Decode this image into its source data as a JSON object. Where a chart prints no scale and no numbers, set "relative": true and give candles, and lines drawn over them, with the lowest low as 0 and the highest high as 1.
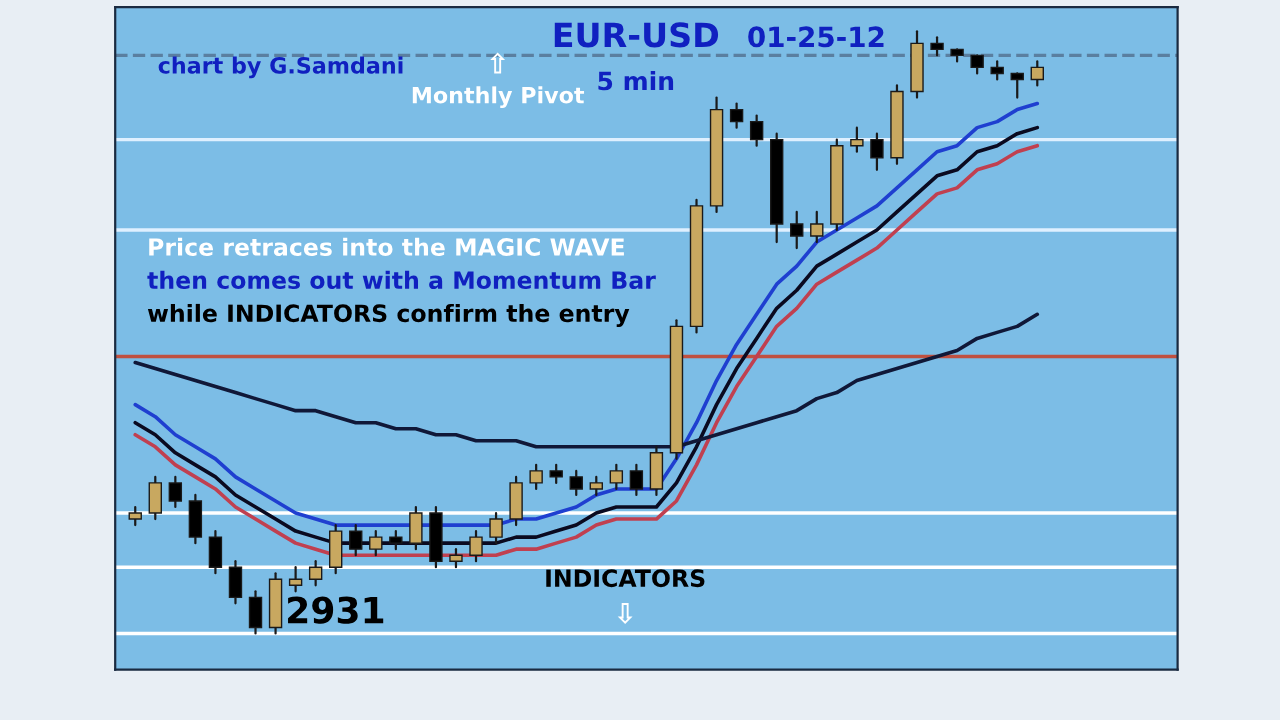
{
  "chart_data": {
    "type": "candlestick",
    "title": "EUR-USD",
    "subtitle": "01-25-12",
    "relative": true,
    "grid": false,
    "categories": [
      null,
      null,
      null,
      null,
      null,
      null,
      null,
      null,
      null,
      null,
      null,
      null,
      null,
      null,
      null,
      null,
      null,
      null,
      null,
      null,
      null,
      null,
      null,
      null,
      null,
      null,
      null,
      null,
      null,
      null,
      null,
      null,
      null,
      null,
      null,
      null,
      null,
      null,
      null,
      null,
      null,
      null,
      null,
      null,
      null,
      null
    ],
    "ohlc": [
      [
        0.19,
        0.21,
        0.18,
        0.2
      ],
      [
        0.2,
        0.26,
        0.19,
        0.25
      ],
      [
        0.25,
        0.26,
        0.21,
        0.22
      ],
      [
        0.22,
        0.23,
        0.15,
        0.16
      ],
      [
        0.16,
        0.17,
        0.1,
        0.11
      ],
      [
        0.11,
        0.12,
        0.05,
        0.06
      ],
      [
        0.06,
        0.07,
        0.0,
        0.01
      ],
      [
        0.01,
        0.1,
        0.0,
        0.09
      ],
      [
        0.08,
        0.11,
        0.07,
        0.09
      ],
      [
        0.09,
        0.12,
        0.08,
        0.11
      ],
      [
        0.11,
        0.18,
        0.1,
        0.17
      ],
      [
        0.17,
        0.18,
        0.13,
        0.14
      ],
      [
        0.14,
        0.17,
        0.13,
        0.16
      ],
      [
        0.16,
        0.17,
        0.14,
        0.15
      ],
      [
        0.15,
        0.21,
        0.14,
        0.2
      ],
      [
        0.2,
        0.21,
        0.11,
        0.12
      ],
      [
        0.12,
        0.14,
        0.11,
        0.13
      ],
      [
        0.13,
        0.17,
        0.12,
        0.16
      ],
      [
        0.16,
        0.2,
        0.15,
        0.19
      ],
      [
        0.19,
        0.26,
        0.18,
        0.25
      ],
      [
        0.25,
        0.28,
        0.24,
        0.27
      ],
      [
        0.27,
        0.28,
        0.25,
        0.26
      ],
      [
        0.26,
        0.27,
        0.23,
        0.24
      ],
      [
        0.24,
        0.26,
        0.23,
        0.25
      ],
      [
        0.25,
        0.28,
        0.24,
        0.27
      ],
      [
        0.27,
        0.28,
        0.23,
        0.24
      ],
      [
        0.24,
        0.31,
        0.23,
        0.3
      ],
      [
        0.3,
        0.52,
        0.29,
        0.51
      ],
      [
        0.51,
        0.72,
        0.5,
        0.71
      ],
      [
        0.71,
        0.89,
        0.7,
        0.87
      ],
      [
        0.87,
        0.88,
        0.84,
        0.85
      ],
      [
        0.85,
        0.86,
        0.81,
        0.82
      ],
      [
        0.82,
        0.83,
        0.65,
        0.68
      ],
      [
        0.68,
        0.7,
        0.64,
        0.66
      ],
      [
        0.66,
        0.7,
        0.65,
        0.68
      ],
      [
        0.68,
        0.82,
        0.67,
        0.81
      ],
      [
        0.81,
        0.84,
        0.8,
        0.82
      ],
      [
        0.82,
        0.83,
        0.77,
        0.79
      ],
      [
        0.79,
        0.91,
        0.78,
        0.9
      ],
      [
        0.9,
        1.0,
        0.89,
        0.98
      ],
      [
        0.98,
        0.99,
        0.96,
        0.97
      ],
      [
        0.97,
        0.97,
        0.95,
        0.96
      ],
      [
        0.96,
        0.96,
        0.93,
        0.94
      ],
      [
        0.94,
        0.95,
        0.92,
        0.93
      ],
      [
        0.93,
        0.93,
        0.89,
        0.92
      ],
      [
        0.92,
        0.95,
        0.91,
        0.94
      ]
    ],
    "series": [
      {
        "type": "line",
        "color": "#1f3fd0",
        "values": [
          0.38,
          0.36,
          0.33,
          0.31,
          0.29,
          0.26,
          0.24,
          0.22,
          0.2,
          0.19,
          0.18,
          0.18,
          0.18,
          0.18,
          0.18,
          0.18,
          0.18,
          0.18,
          0.18,
          0.19,
          0.19,
          0.2,
          0.21,
          0.23,
          0.24,
          0.24,
          0.24,
          0.29,
          0.35,
          0.42,
          0.48,
          0.53,
          0.58,
          0.61,
          0.65,
          0.67,
          0.69,
          0.71,
          0.74,
          0.77,
          0.8,
          0.81,
          0.84,
          0.85,
          0.87,
          0.88
        ]
      },
      {
        "type": "line",
        "color": "#0a0a20",
        "values": [
          0.35,
          0.33,
          0.3,
          0.28,
          0.26,
          0.23,
          0.21,
          0.19,
          0.17,
          0.16,
          0.15,
          0.15,
          0.15,
          0.15,
          0.15,
          0.15,
          0.15,
          0.15,
          0.15,
          0.16,
          0.16,
          0.17,
          0.18,
          0.2,
          0.21,
          0.21,
          0.21,
          0.25,
          0.31,
          0.38,
          0.44,
          0.49,
          0.54,
          0.57,
          0.61,
          0.63,
          0.65,
          0.67,
          0.7,
          0.73,
          0.76,
          0.77,
          0.8,
          0.81,
          0.83,
          0.84
        ]
      },
      {
        "type": "line",
        "color": "#c04050",
        "values": [
          0.33,
          0.31,
          0.28,
          0.26,
          0.24,
          0.21,
          0.19,
          0.17,
          0.15,
          0.14,
          0.13,
          0.13,
          0.13,
          0.13,
          0.13,
          0.13,
          0.13,
          0.13,
          0.13,
          0.14,
          0.14,
          0.15,
          0.16,
          0.18,
          0.19,
          0.19,
          0.19,
          0.22,
          0.28,
          0.35,
          0.41,
          0.46,
          0.51,
          0.54,
          0.58,
          0.6,
          0.62,
          0.64,
          0.67,
          0.7,
          0.73,
          0.74,
          0.77,
          0.78,
          0.8,
          0.81
        ]
      },
      {
        "type": "line",
        "color": "#101838",
        "values": [
          0.45,
          0.44,
          0.43,
          0.42,
          0.41,
          0.4,
          0.39,
          0.38,
          0.37,
          0.37,
          0.36,
          0.35,
          0.35,
          0.34,
          0.34,
          0.33,
          0.33,
          0.32,
          0.32,
          0.32,
          0.31,
          0.31,
          0.31,
          0.31,
          0.31,
          0.31,
          0.31,
          0.31,
          0.32,
          0.33,
          0.34,
          0.35,
          0.36,
          0.37,
          0.39,
          0.4,
          0.42,
          0.43,
          0.44,
          0.45,
          0.46,
          0.47,
          0.49,
          0.5,
          0.51,
          0.53
        ]
      }
    ],
    "ref_lines": [
      {
        "axis": "y",
        "value": 0.82,
        "color": "#dff0ff"
      },
      {
        "axis": "y",
        "value": 0.96,
        "color": "#5a7fa0",
        "line_style": "dashed"
      },
      {
        "axis": "y",
        "value": 0.67,
        "color": "#dff0ff"
      },
      {
        "axis": "y",
        "value": 0.46,
        "color": "#c05040"
      },
      {
        "axis": "y",
        "value": 0.2,
        "color": "#ffffff"
      },
      {
        "axis": "y",
        "value": 0.11,
        "color": "#ffffff"
      },
      {
        "axis": "y",
        "value": 0.0,
        "color": "#ffffff"
      }
    ],
    "annotations": [
      "5 min",
      "chart by G.Samdani",
      "⇧",
      "Monthly Pivot",
      "Price retraces into the MAGIC WAVE",
      "then comes out with a Momentum Bar",
      "while INDICATORS confirm the entry",
      "INDICATORS",
      "⇩",
      "2931"
    ]
  }
}
